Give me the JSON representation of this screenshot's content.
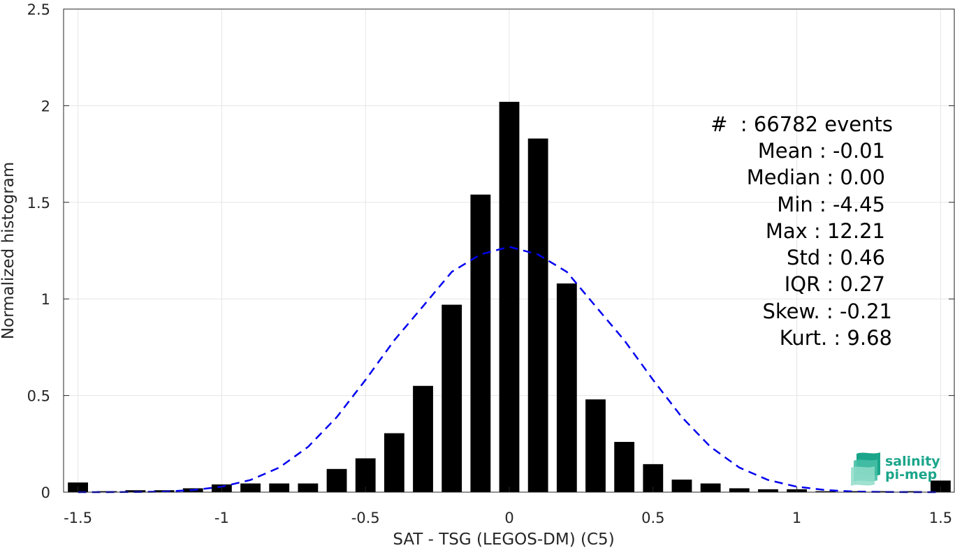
{
  "chart_data": {
    "type": "bar",
    "xlabel": "SAT - TSG (LEGOS-DM) (C5)",
    "ylabel": "Normalized histogram",
    "xlim": [
      -1.55,
      1.55
    ],
    "ylim": [
      0,
      2.5
    ],
    "grid": true,
    "x_ticks": [
      {
        "value": -1.5,
        "label": "-1.5"
      },
      {
        "value": -1,
        "label": "-1"
      },
      {
        "value": -0.5,
        "label": "-0.5"
      },
      {
        "value": 0,
        "label": "0"
      },
      {
        "value": 0.5,
        "label": "0.5"
      },
      {
        "value": 1,
        "label": "1"
      },
      {
        "value": 1.5,
        "label": "1.5"
      }
    ],
    "y_ticks": [
      {
        "value": 0,
        "label": "0"
      },
      {
        "value": 0.5,
        "label": "0.5"
      },
      {
        "value": 1,
        "label": "1"
      },
      {
        "value": 1.5,
        "label": "1.5"
      },
      {
        "value": 2,
        "label": "2"
      },
      {
        "value": 2.5,
        "label": "2.5"
      }
    ],
    "bar_width": 0.07,
    "series": [
      {
        "type": "bar",
        "color": "#000000",
        "x": [
          -1.5,
          -1.4,
          -1.3,
          -1.2,
          -1.1,
          -1.0,
          -0.9,
          -0.8,
          -0.7,
          -0.6,
          -0.5,
          -0.4,
          -0.3,
          -0.2,
          -0.1,
          0.0,
          0.1,
          0.2,
          0.3,
          0.4,
          0.5,
          0.6,
          0.7,
          0.8,
          0.9,
          1.0,
          1.1,
          1.2,
          1.3,
          1.4,
          1.5
        ],
        "values": [
          0.05,
          0.005,
          0.01,
          0.01,
          0.02,
          0.04,
          0.045,
          0.045,
          0.045,
          0.12,
          0.175,
          0.305,
          0.55,
          0.97,
          1.54,
          2.02,
          1.83,
          1.08,
          0.48,
          0.26,
          0.145,
          0.065,
          0.045,
          0.02,
          0.015,
          0.015,
          0.005,
          0.005,
          0.005,
          0.005,
          0.06
        ]
      },
      {
        "type": "line",
        "style": "dashed",
        "color": "#0000ee",
        "x": [
          -1.5,
          -1.4,
          -1.3,
          -1.2,
          -1.1,
          -1.0,
          -0.9,
          -0.8,
          -0.7,
          -0.6,
          -0.5,
          -0.4,
          -0.3,
          -0.2,
          -0.1,
          0.0,
          0.1,
          0.2,
          0.3,
          0.4,
          0.5,
          0.6,
          0.7,
          0.8,
          0.9,
          1.0,
          1.1,
          1.2,
          1.3,
          1.4,
          1.5
        ],
        "values": [
          0.0,
          0.0,
          0.001,
          0.003,
          0.011,
          0.028,
          0.063,
          0.127,
          0.234,
          0.388,
          0.581,
          0.786,
          0.962,
          1.14,
          1.23,
          1.27,
          1.23,
          1.14,
          0.962,
          0.786,
          0.581,
          0.388,
          0.234,
          0.127,
          0.063,
          0.028,
          0.011,
          0.003,
          0.001,
          0.0,
          0.0
        ]
      }
    ],
    "annotations": [
      "#  : 66782 events",
      "Mean : -0.01",
      "Median : 0.00",
      "Min : -4.45",
      "Max : 12.21",
      "Std : 0.46",
      "IQR : 0.27",
      "Skew. : -0.21",
      "Kurt. : 9.68"
    ]
  },
  "logo": {
    "line1": "salinity",
    "line2": "pi-mep",
    "colors": [
      "#1aa58a",
      "#7fd6c3"
    ]
  }
}
